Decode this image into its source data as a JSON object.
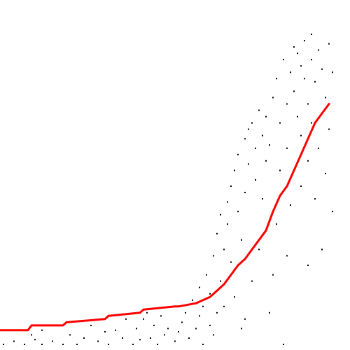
{
  "chart_data": {
    "type": "scatter",
    "title": "",
    "xlabel": "",
    "ylabel": "",
    "grid": false,
    "legend": "none",
    "xlim": [
      0,
      1
    ],
    "ylim": [
      0,
      1
    ],
    "point_color": "#000000",
    "line_color": "#ff0000",
    "scatter_points": [
      [
        0.01,
        0.0
      ],
      [
        0.04,
        0.01
      ],
      [
        0.07,
        0.0
      ],
      [
        0.09,
        0.03
      ],
      [
        0.1,
        0.015
      ],
      [
        0.12,
        0.045
      ],
      [
        0.12,
        0.0
      ],
      [
        0.15,
        0.01
      ],
      [
        0.18,
        0.0
      ],
      [
        0.2,
        0.03
      ],
      [
        0.22,
        0.0
      ],
      [
        0.24,
        0.02
      ],
      [
        0.26,
        0.06
      ],
      [
        0.28,
        0.01
      ],
      [
        0.3,
        0.04
      ],
      [
        0.31,
        0.0
      ],
      [
        0.33,
        0.045
      ],
      [
        0.35,
        0.02
      ],
      [
        0.36,
        0.08
      ],
      [
        0.38,
        0.0
      ],
      [
        0.39,
        0.05
      ],
      [
        0.4,
        0.015
      ],
      [
        0.41,
        0.08
      ],
      [
        0.42,
        0.1
      ],
      [
        0.43,
        0.02
      ],
      [
        0.44,
        0.06
      ],
      [
        0.45,
        0.0
      ],
      [
        0.46,
        0.09
      ],
      [
        0.47,
        0.03
      ],
      [
        0.48,
        0.05
      ],
      [
        0.5,
        0.12
      ],
      [
        0.5,
        0.01
      ],
      [
        0.51,
        0.04
      ],
      [
        0.52,
        0.07
      ],
      [
        0.53,
        0.1
      ],
      [
        0.54,
        0.02
      ],
      [
        0.55,
        0.14
      ],
      [
        0.56,
        0.05
      ],
      [
        0.57,
        0.09
      ],
      [
        0.57,
        0.18
      ],
      [
        0.58,
        0.0
      ],
      [
        0.58,
        0.12
      ],
      [
        0.59,
        0.22
      ],
      [
        0.6,
        0.06
      ],
      [
        0.6,
        0.16
      ],
      [
        0.61,
        0.28
      ],
      [
        0.61,
        0.03
      ],
      [
        0.62,
        0.1
      ],
      [
        0.62,
        0.35
      ],
      [
        0.63,
        0.2
      ],
      [
        0.63,
        0.41
      ],
      [
        0.64,
        0.3
      ],
      [
        0.64,
        0.12
      ],
      [
        0.65,
        0.45
      ],
      [
        0.65,
        0.38
      ],
      [
        0.66,
        0.26
      ],
      [
        0.66,
        0.5
      ],
      [
        0.67,
        0.15
      ],
      [
        0.67,
        0.55
      ],
      [
        0.68,
        0.42
      ],
      [
        0.68,
        0.6
      ],
      [
        0.69,
        0.33
      ],
      [
        0.69,
        0.05
      ],
      [
        0.7,
        0.08
      ],
      [
        0.7,
        0.48
      ],
      [
        0.7,
        0.65
      ],
      [
        0.71,
        0.57
      ],
      [
        0.71,
        0.68
      ],
      [
        0.72,
        0.2
      ],
      [
        0.72,
        0.7
      ],
      [
        0.73,
        0.52
      ],
      [
        0.73,
        0.62
      ],
      [
        0.74,
        0.3
      ],
      [
        0.74,
        0.74
      ],
      [
        0.75,
        0.46
      ],
      [
        0.75,
        0.66
      ],
      [
        0.76,
        0.72
      ],
      [
        0.76,
        0.58
      ],
      [
        0.77,
        0.1
      ],
      [
        0.77,
        0.63
      ],
      [
        0.78,
        0.22
      ],
      [
        0.78,
        0.78
      ],
      [
        0.79,
        0.38
      ],
      [
        0.79,
        0.84
      ],
      [
        0.8,
        0.7
      ],
      [
        0.8,
        0.55
      ],
      [
        0.81,
        0.0
      ],
      [
        0.81,
        0.9
      ],
      [
        0.82,
        0.76
      ],
      [
        0.82,
        0.62
      ],
      [
        0.82,
        0.28
      ],
      [
        0.83,
        0.86
      ],
      [
        0.83,
        0.44
      ],
      [
        0.84,
        0.94
      ],
      [
        0.84,
        0.8
      ],
      [
        0.85,
        0.72
      ],
      [
        0.85,
        0.92
      ],
      [
        0.86,
        0.88
      ],
      [
        0.86,
        0.66
      ],
      [
        0.86,
        0.5
      ],
      [
        0.87,
        0.96
      ],
      [
        0.87,
        0.84
      ],
      [
        0.88,
        0.76
      ],
      [
        0.88,
        0.58
      ],
      [
        0.88,
        0.25
      ],
      [
        0.89,
        0.9
      ],
      [
        0.89,
        0.7
      ],
      [
        0.89,
        0.98
      ],
      [
        0.9,
        0.83
      ],
      [
        0.9,
        0.46
      ],
      [
        0.91,
        0.93
      ],
      [
        0.91,
        0.62
      ],
      [
        0.92,
        0.87
      ],
      [
        0.92,
        0.3
      ],
      [
        0.93,
        0.78
      ],
      [
        0.93,
        0.54
      ],
      [
        0.94,
        0.95
      ],
      [
        0.94,
        0.68
      ],
      [
        0.95,
        0.42
      ],
      [
        0.95,
        0.86
      ]
    ],
    "series": [
      {
        "x": [
          0.0,
          0.08,
          0.09,
          0.18,
          0.19,
          0.3,
          0.31,
          0.4,
          0.41,
          0.5,
          0.51,
          0.56,
          0.58,
          0.6,
          0.62,
          0.64,
          0.66,
          0.68,
          0.7,
          0.72,
          0.74,
          0.76,
          0.78,
          0.8,
          0.82,
          0.84,
          0.86,
          0.88,
          0.9,
          0.92,
          0.94
        ],
        "y": [
          0.045,
          0.045,
          0.06,
          0.06,
          0.07,
          0.08,
          0.09,
          0.1,
          0.11,
          0.12,
          0.12,
          0.13,
          0.14,
          0.15,
          0.17,
          0.19,
          0.22,
          0.25,
          0.27,
          0.3,
          0.33,
          0.36,
          0.42,
          0.47,
          0.5,
          0.55,
          0.6,
          0.65,
          0.7,
          0.73,
          0.76
        ]
      }
    ]
  }
}
